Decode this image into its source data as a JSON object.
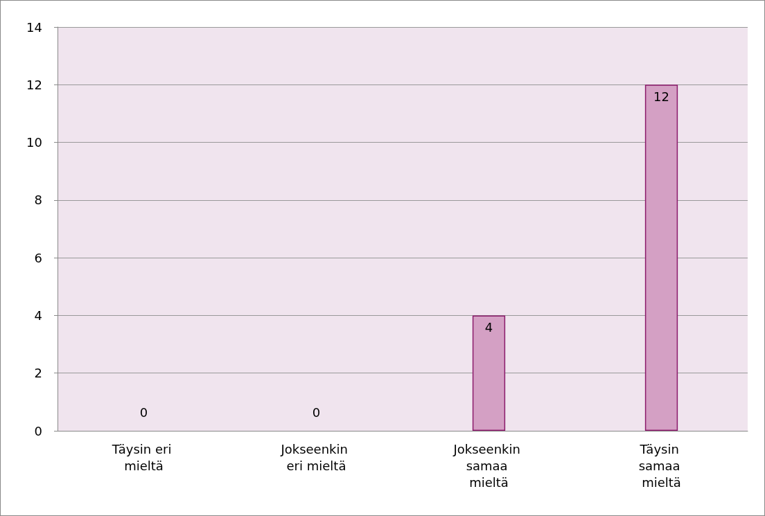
{
  "chart_data": {
    "type": "bar",
    "categories": [
      "Täysin eri mieltä",
      "Jokseenkin eri mieltä",
      "Jokseenkin samaa mieltä",
      "Täysin samaa mieltä"
    ],
    "values": [
      0,
      0,
      4,
      12
    ],
    "color": "#d4a0c4",
    "ylim": [
      0,
      14
    ],
    "yticks": [
      0,
      2,
      4,
      6,
      8,
      10,
      12,
      14
    ],
    "grid": true,
    "data_labels": true
  }
}
